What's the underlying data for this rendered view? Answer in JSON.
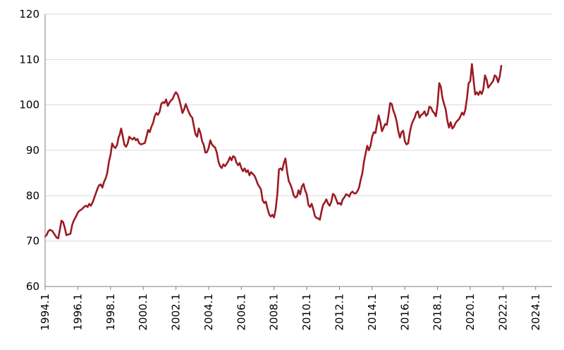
{
  "chart_data": {
    "type": "line",
    "title": "",
    "xlabel": "",
    "ylabel": "",
    "ylim": [
      60,
      120
    ],
    "yticks": [
      60,
      70,
      80,
      90,
      100,
      110,
      120
    ],
    "grid": "horizontal",
    "xlim": [
      1994.0,
      2025.0
    ],
    "xticks": [
      {
        "value": 1994,
        "label": "1994.1"
      },
      {
        "value": 1996,
        "label": "1996.1"
      },
      {
        "value": 1998,
        "label": "1998.1"
      },
      {
        "value": 2000,
        "label": "2000.1"
      },
      {
        "value": 2002,
        "label": "2002.1"
      },
      {
        "value": 2004,
        "label": "2004.1"
      },
      {
        "value": 2006,
        "label": "2006.1"
      },
      {
        "value": 2008,
        "label": "2008.1"
      },
      {
        "value": 2010,
        "label": "2010.1"
      },
      {
        "value": 2012,
        "label": "2012.1"
      },
      {
        "value": 2014,
        "label": "2014.1"
      },
      {
        "value": 2016,
        "label": "2016.1"
      },
      {
        "value": 2018,
        "label": "2018.1"
      },
      {
        "value": 2020,
        "label": "2020.1"
      },
      {
        "value": 2022,
        "label": "2022.1"
      },
      {
        "value": 2024,
        "label": "2024.1"
      }
    ],
    "series": [
      {
        "color": "#9b1b24",
        "points": [
          [
            1994.0,
            71.0
          ],
          [
            1994.1,
            71.4
          ],
          [
            1994.2,
            72.2
          ],
          [
            1994.3,
            72.5
          ],
          [
            1994.45,
            72.2
          ],
          [
            1994.55,
            71.6
          ],
          [
            1994.7,
            70.8
          ],
          [
            1994.8,
            70.6
          ],
          [
            1994.9,
            72.5
          ],
          [
            1995.0,
            74.5
          ],
          [
            1995.1,
            74.2
          ],
          [
            1995.2,
            73.0
          ],
          [
            1995.3,
            71.3
          ],
          [
            1995.45,
            71.5
          ],
          [
            1995.55,
            71.6
          ],
          [
            1995.65,
            73.5
          ],
          [
            1995.75,
            74.5
          ],
          [
            1995.9,
            75.5
          ],
          [
            1996.0,
            76.3
          ],
          [
            1996.1,
            76.7
          ],
          [
            1996.2,
            76.9
          ],
          [
            1996.3,
            77.2
          ],
          [
            1996.4,
            77.6
          ],
          [
            1996.5,
            77.8
          ],
          [
            1996.6,
            77.5
          ],
          [
            1996.7,
            78.2
          ],
          [
            1996.8,
            77.8
          ],
          [
            1996.9,
            78.5
          ],
          [
            1997.0,
            79.5
          ],
          [
            1997.1,
            80.5
          ],
          [
            1997.2,
            81.5
          ],
          [
            1997.3,
            82.3
          ],
          [
            1997.4,
            82.5
          ],
          [
            1997.5,
            81.8
          ],
          [
            1997.6,
            83.0
          ],
          [
            1997.7,
            83.8
          ],
          [
            1997.8,
            85.0
          ],
          [
            1997.9,
            87.5
          ],
          [
            1998.0,
            89.0
          ],
          [
            1998.1,
            91.5
          ],
          [
            1998.2,
            90.8
          ],
          [
            1998.3,
            90.5
          ],
          [
            1998.4,
            91.2
          ],
          [
            1998.5,
            93.0
          ],
          [
            1998.55,
            93.3
          ],
          [
            1998.65,
            94.8
          ],
          [
            1998.75,
            93.0
          ],
          [
            1998.85,
            91.2
          ],
          [
            1998.95,
            90.8
          ],
          [
            1999.05,
            91.5
          ],
          [
            1999.15,
            93.0
          ],
          [
            1999.25,
            92.6
          ],
          [
            1999.35,
            92.4
          ],
          [
            1999.45,
            92.8
          ],
          [
            1999.55,
            92.2
          ],
          [
            1999.65,
            92.5
          ],
          [
            1999.75,
            91.6
          ],
          [
            1999.85,
            91.3
          ],
          [
            1999.95,
            91.4
          ],
          [
            2000.1,
            91.6
          ],
          [
            2000.2,
            93.0
          ],
          [
            2000.3,
            94.5
          ],
          [
            2000.4,
            94.0
          ],
          [
            2000.5,
            95.2
          ],
          [
            2000.6,
            96.0
          ],
          [
            2000.7,
            97.5
          ],
          [
            2000.8,
            98.2
          ],
          [
            2000.9,
            97.8
          ],
          [
            2001.0,
            98.5
          ],
          [
            2001.1,
            100.2
          ],
          [
            2001.2,
            100.6
          ],
          [
            2001.3,
            100.4
          ],
          [
            2001.4,
            101.2
          ],
          [
            2001.5,
            99.8
          ],
          [
            2001.6,
            100.5
          ],
          [
            2001.7,
            101.0
          ],
          [
            2001.8,
            101.3
          ],
          [
            2001.9,
            102.2
          ],
          [
            2002.0,
            102.8
          ],
          [
            2002.1,
            102.3
          ],
          [
            2002.2,
            101.2
          ],
          [
            2002.3,
            99.8
          ],
          [
            2002.4,
            98.2
          ],
          [
            2002.5,
            99.0
          ],
          [
            2002.6,
            100.2
          ],
          [
            2002.7,
            99.2
          ],
          [
            2002.8,
            98.3
          ],
          [
            2002.9,
            97.6
          ],
          [
            2003.0,
            97.2
          ],
          [
            2003.1,
            95.2
          ],
          [
            2003.2,
            93.5
          ],
          [
            2003.3,
            93.0
          ],
          [
            2003.4,
            94.8
          ],
          [
            2003.5,
            93.8
          ],
          [
            2003.6,
            92.0
          ],
          [
            2003.7,
            91.2
          ],
          [
            2003.8,
            89.5
          ],
          [
            2003.9,
            89.6
          ],
          [
            2004.0,
            90.5
          ],
          [
            2004.1,
            92.2
          ],
          [
            2004.2,
            91.3
          ],
          [
            2004.3,
            90.9
          ],
          [
            2004.4,
            90.6
          ],
          [
            2004.5,
            89.5
          ],
          [
            2004.6,
            87.5
          ],
          [
            2004.7,
            86.5
          ],
          [
            2004.8,
            86.1
          ],
          [
            2004.9,
            86.9
          ],
          [
            2005.0,
            86.5
          ],
          [
            2005.1,
            87.0
          ],
          [
            2005.2,
            87.6
          ],
          [
            2005.3,
            88.5
          ],
          [
            2005.4,
            87.8
          ],
          [
            2005.5,
            88.7
          ],
          [
            2005.6,
            88.5
          ],
          [
            2005.7,
            87.3
          ],
          [
            2005.8,
            86.7
          ],
          [
            2005.9,
            87.2
          ],
          [
            2006.0,
            86.1
          ],
          [
            2006.1,
            85.4
          ],
          [
            2006.2,
            86.0
          ],
          [
            2006.3,
            85.2
          ],
          [
            2006.4,
            85.6
          ],
          [
            2006.5,
            84.5
          ],
          [
            2006.6,
            85.2
          ],
          [
            2006.7,
            84.8
          ],
          [
            2006.8,
            84.4
          ],
          [
            2006.9,
            83.6
          ],
          [
            2007.0,
            82.6
          ],
          [
            2007.1,
            82.0
          ],
          [
            2007.2,
            81.4
          ],
          [
            2007.3,
            79.0
          ],
          [
            2007.4,
            78.4
          ],
          [
            2007.5,
            78.7
          ],
          [
            2007.6,
            77.2
          ],
          [
            2007.7,
            75.9
          ],
          [
            2007.8,
            75.4
          ],
          [
            2007.9,
            75.8
          ],
          [
            2008.0,
            75.2
          ],
          [
            2008.1,
            77.0
          ],
          [
            2008.2,
            80.2
          ],
          [
            2008.3,
            85.8
          ],
          [
            2008.4,
            86.0
          ],
          [
            2008.5,
            85.6
          ],
          [
            2008.6,
            87.2
          ],
          [
            2008.7,
            88.2
          ],
          [
            2008.8,
            85.2
          ],
          [
            2008.9,
            83.2
          ],
          [
            2009.0,
            82.5
          ],
          [
            2009.1,
            81.5
          ],
          [
            2009.2,
            80.1
          ],
          [
            2009.3,
            79.6
          ],
          [
            2009.4,
            79.8
          ],
          [
            2009.5,
            81.2
          ],
          [
            2009.6,
            80.3
          ],
          [
            2009.7,
            82.0
          ],
          [
            2009.8,
            82.6
          ],
          [
            2009.9,
            81.2
          ],
          [
            2010.0,
            80.3
          ],
          [
            2010.1,
            78.0
          ],
          [
            2010.2,
            77.5
          ],
          [
            2010.3,
            78.2
          ],
          [
            2010.4,
            77.0
          ],
          [
            2010.5,
            75.5
          ],
          [
            2010.6,
            75.1
          ],
          [
            2010.7,
            75.0
          ],
          [
            2010.8,
            74.7
          ],
          [
            2010.9,
            76.5
          ],
          [
            2011.0,
            78.0
          ],
          [
            2011.1,
            78.5
          ],
          [
            2011.2,
            79.2
          ],
          [
            2011.3,
            78.3
          ],
          [
            2011.4,
            77.8
          ],
          [
            2011.5,
            78.6
          ],
          [
            2011.6,
            80.4
          ],
          [
            2011.7,
            80.1
          ],
          [
            2011.8,
            79.2
          ],
          [
            2011.9,
            78.2
          ],
          [
            2012.0,
            78.4
          ],
          [
            2012.1,
            78.0
          ],
          [
            2012.2,
            79.2
          ],
          [
            2012.3,
            79.6
          ],
          [
            2012.4,
            80.3
          ],
          [
            2012.5,
            80.2
          ],
          [
            2012.6,
            79.8
          ],
          [
            2012.7,
            80.6
          ],
          [
            2012.8,
            80.9
          ],
          [
            2012.9,
            80.5
          ],
          [
            2013.0,
            80.5
          ],
          [
            2013.1,
            81.0
          ],
          [
            2013.2,
            81.8
          ],
          [
            2013.3,
            83.5
          ],
          [
            2013.4,
            85.0
          ],
          [
            2013.5,
            87.5
          ],
          [
            2013.6,
            89.3
          ],
          [
            2013.7,
            91.0
          ],
          [
            2013.8,
            90.0
          ],
          [
            2013.9,
            91.0
          ],
          [
            2014.0,
            93.0
          ],
          [
            2014.1,
            94.0
          ],
          [
            2014.2,
            93.8
          ],
          [
            2014.3,
            95.8
          ],
          [
            2014.4,
            97.7
          ],
          [
            2014.5,
            96.2
          ],
          [
            2014.6,
            94.2
          ],
          [
            2014.7,
            95.0
          ],
          [
            2014.8,
            95.8
          ],
          [
            2014.9,
            95.6
          ],
          [
            2015.0,
            97.8
          ],
          [
            2015.1,
            100.4
          ],
          [
            2015.2,
            100.2
          ],
          [
            2015.3,
            98.7
          ],
          [
            2015.4,
            97.8
          ],
          [
            2015.5,
            96.3
          ],
          [
            2015.6,
            94.2
          ],
          [
            2015.7,
            92.8
          ],
          [
            2015.8,
            94.0
          ],
          [
            2015.9,
            94.3
          ],
          [
            2016.0,
            92.0
          ],
          [
            2016.1,
            91.3
          ],
          [
            2016.2,
            91.5
          ],
          [
            2016.3,
            93.8
          ],
          [
            2016.4,
            95.5
          ],
          [
            2016.5,
            96.5
          ],
          [
            2016.6,
            97.2
          ],
          [
            2016.7,
            98.3
          ],
          [
            2016.8,
            98.6
          ],
          [
            2016.9,
            97.2
          ],
          [
            2017.0,
            97.8
          ],
          [
            2017.1,
            98.0
          ],
          [
            2017.2,
            98.6
          ],
          [
            2017.3,
            97.6
          ],
          [
            2017.4,
            98.0
          ],
          [
            2017.5,
            99.6
          ],
          [
            2017.6,
            99.4
          ],
          [
            2017.7,
            98.6
          ],
          [
            2017.8,
            98.2
          ],
          [
            2017.9,
            97.5
          ],
          [
            2018.0,
            100.0
          ],
          [
            2018.1,
            104.8
          ],
          [
            2018.2,
            104.0
          ],
          [
            2018.3,
            101.5
          ],
          [
            2018.4,
            100.2
          ],
          [
            2018.5,
            99.0
          ],
          [
            2018.6,
            96.5
          ],
          [
            2018.7,
            95.0
          ],
          [
            2018.8,
            96.2
          ],
          [
            2018.9,
            94.8
          ],
          [
            2019.0,
            95.2
          ],
          [
            2019.1,
            96.0
          ],
          [
            2019.2,
            96.5
          ],
          [
            2019.3,
            96.8
          ],
          [
            2019.4,
            97.5
          ],
          [
            2019.5,
            98.3
          ],
          [
            2019.6,
            97.8
          ],
          [
            2019.7,
            99.0
          ],
          [
            2019.8,
            101.5
          ],
          [
            2019.9,
            104.8
          ],
          [
            2020.0,
            105.2
          ],
          [
            2020.1,
            109.0
          ],
          [
            2020.2,
            105.5
          ],
          [
            2020.3,
            102.3
          ],
          [
            2020.4,
            102.8
          ],
          [
            2020.5,
            102.2
          ],
          [
            2020.6,
            103.0
          ],
          [
            2020.7,
            102.4
          ],
          [
            2020.8,
            103.5
          ],
          [
            2020.9,
            106.5
          ],
          [
            2021.0,
            105.6
          ],
          [
            2021.1,
            103.8
          ],
          [
            2021.2,
            104.3
          ],
          [
            2021.3,
            104.8
          ],
          [
            2021.4,
            105.3
          ],
          [
            2021.5,
            106.5
          ],
          [
            2021.6,
            106.2
          ],
          [
            2021.7,
            105.0
          ],
          [
            2021.8,
            106.2
          ],
          [
            2021.9,
            108.6
          ]
        ]
      }
    ]
  }
}
